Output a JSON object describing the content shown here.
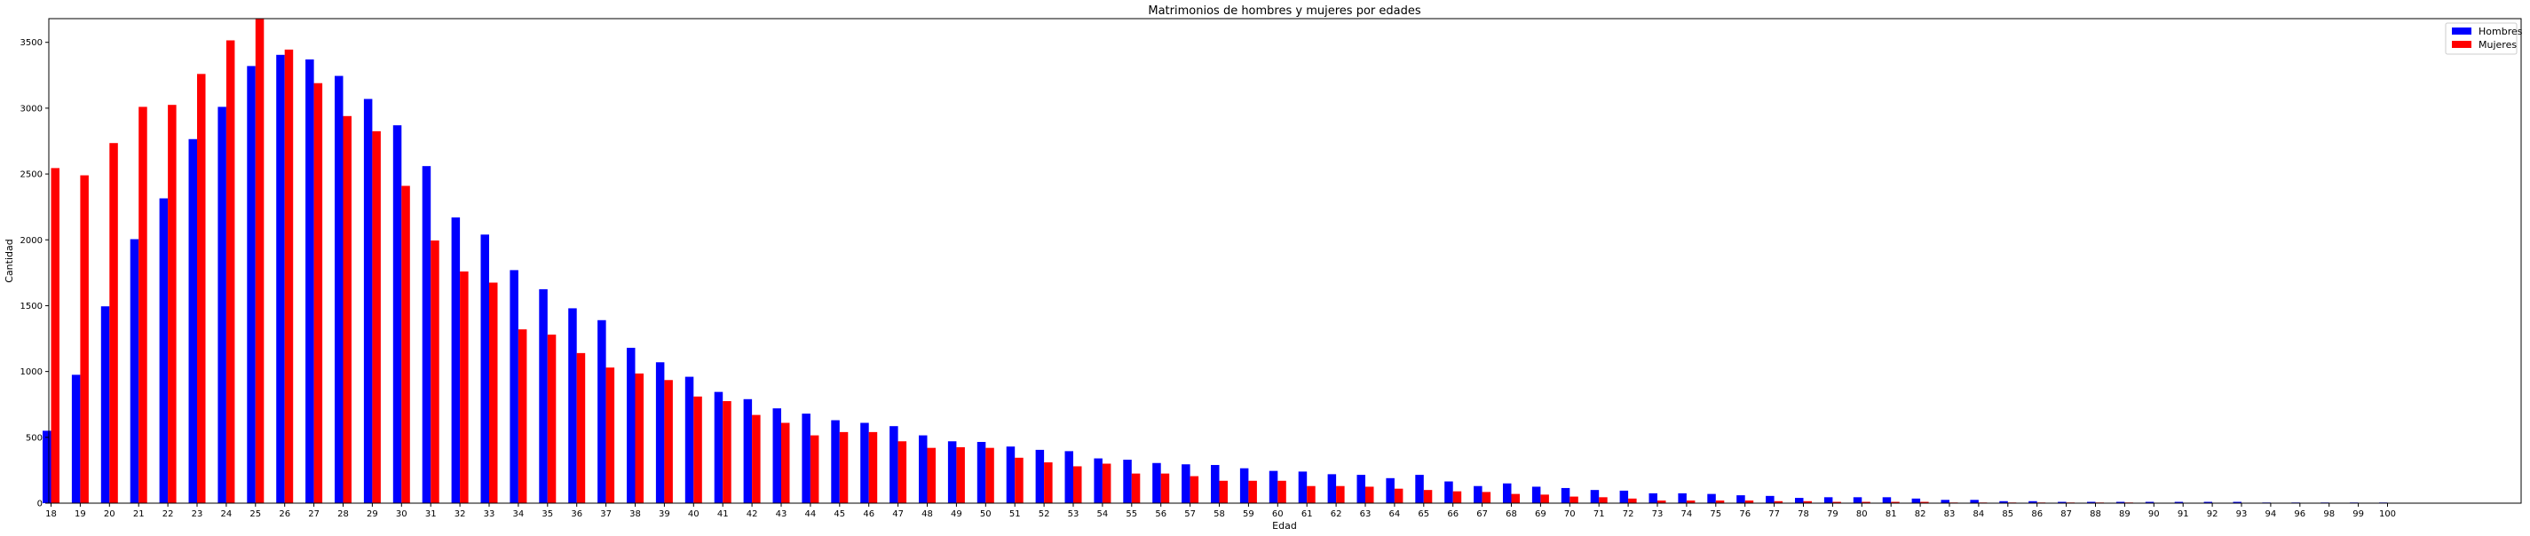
{
  "chart_data": {
    "type": "bar",
    "title": "Matrimonios de hombres y mujeres por edades",
    "xlabel": "Edad",
    "ylabel": "Cantidad",
    "ylim": [
      0,
      3680
    ],
    "yticks": [
      0,
      500,
      1000,
      1500,
      2000,
      2500,
      3000,
      3500
    ],
    "legend_position": "top-right",
    "grid": false,
    "categories": [
      "18",
      "19",
      "20",
      "21",
      "22",
      "23",
      "24",
      "25",
      "26",
      "27",
      "28",
      "29",
      "30",
      "31",
      "32",
      "33",
      "34",
      "35",
      "36",
      "37",
      "38",
      "39",
      "40",
      "41",
      "42",
      "43",
      "44",
      "45",
      "46",
      "47",
      "48",
      "49",
      "50",
      "51",
      "52",
      "53",
      "54",
      "55",
      "56",
      "57",
      "58",
      "59",
      "60",
      "61",
      "62",
      "63",
      "64",
      "65",
      "66",
      "67",
      "68",
      "69",
      "70",
      "71",
      "72",
      "73",
      "74",
      "75",
      "76",
      "77",
      "78",
      "79",
      "80",
      "81",
      "82",
      "83",
      "84",
      "85",
      "86",
      "87",
      "88",
      "89",
      "90",
      "91",
      "92",
      "93",
      "94",
      "96",
      "98",
      "99",
      "100"
    ],
    "series": [
      {
        "name": "Hombres",
        "color": "#0000ff",
        "values": [
          550,
          975,
          1495,
          2005,
          2315,
          2765,
          3010,
          3320,
          3405,
          3370,
          3245,
          3070,
          2870,
          2560,
          2170,
          2040,
          1770,
          1625,
          1480,
          1390,
          1180,
          1070,
          960,
          845,
          790,
          720,
          680,
          630,
          610,
          585,
          515,
          470,
          465,
          430,
          405,
          395,
          340,
          330,
          305,
          295,
          290,
          265,
          245,
          240,
          220,
          215,
          190,
          215,
          165,
          130,
          150,
          125,
          115,
          100,
          95,
          75,
          75,
          70,
          60,
          55,
          40,
          45,
          45,
          45,
          35,
          25,
          25,
          15,
          15,
          10,
          10,
          10,
          10,
          10,
          10,
          10,
          5,
          5,
          5,
          5,
          5
        ]
      },
      {
        "name": "Mujeres",
        "color": "#ff0000",
        "values": [
          2545,
          2490,
          2735,
          3010,
          3025,
          3260,
          3515,
          3680,
          3445,
          3190,
          2940,
          2825,
          2410,
          1995,
          1760,
          1675,
          1320,
          1280,
          1140,
          1030,
          985,
          935,
          810,
          775,
          670,
          610,
          515,
          540,
          540,
          470,
          420,
          425,
          420,
          345,
          310,
          280,
          300,
          225,
          225,
          205,
          170,
          170,
          170,
          130,
          130,
          125,
          110,
          100,
          90,
          85,
          70,
          65,
          50,
          45,
          35,
          20,
          20,
          20,
          20,
          15,
          15,
          10,
          10,
          10,
          10,
          5,
          5,
          5,
          5,
          5,
          5,
          5,
          0,
          0,
          0,
          0,
          0,
          0,
          0,
          0,
          0
        ]
      }
    ]
  }
}
